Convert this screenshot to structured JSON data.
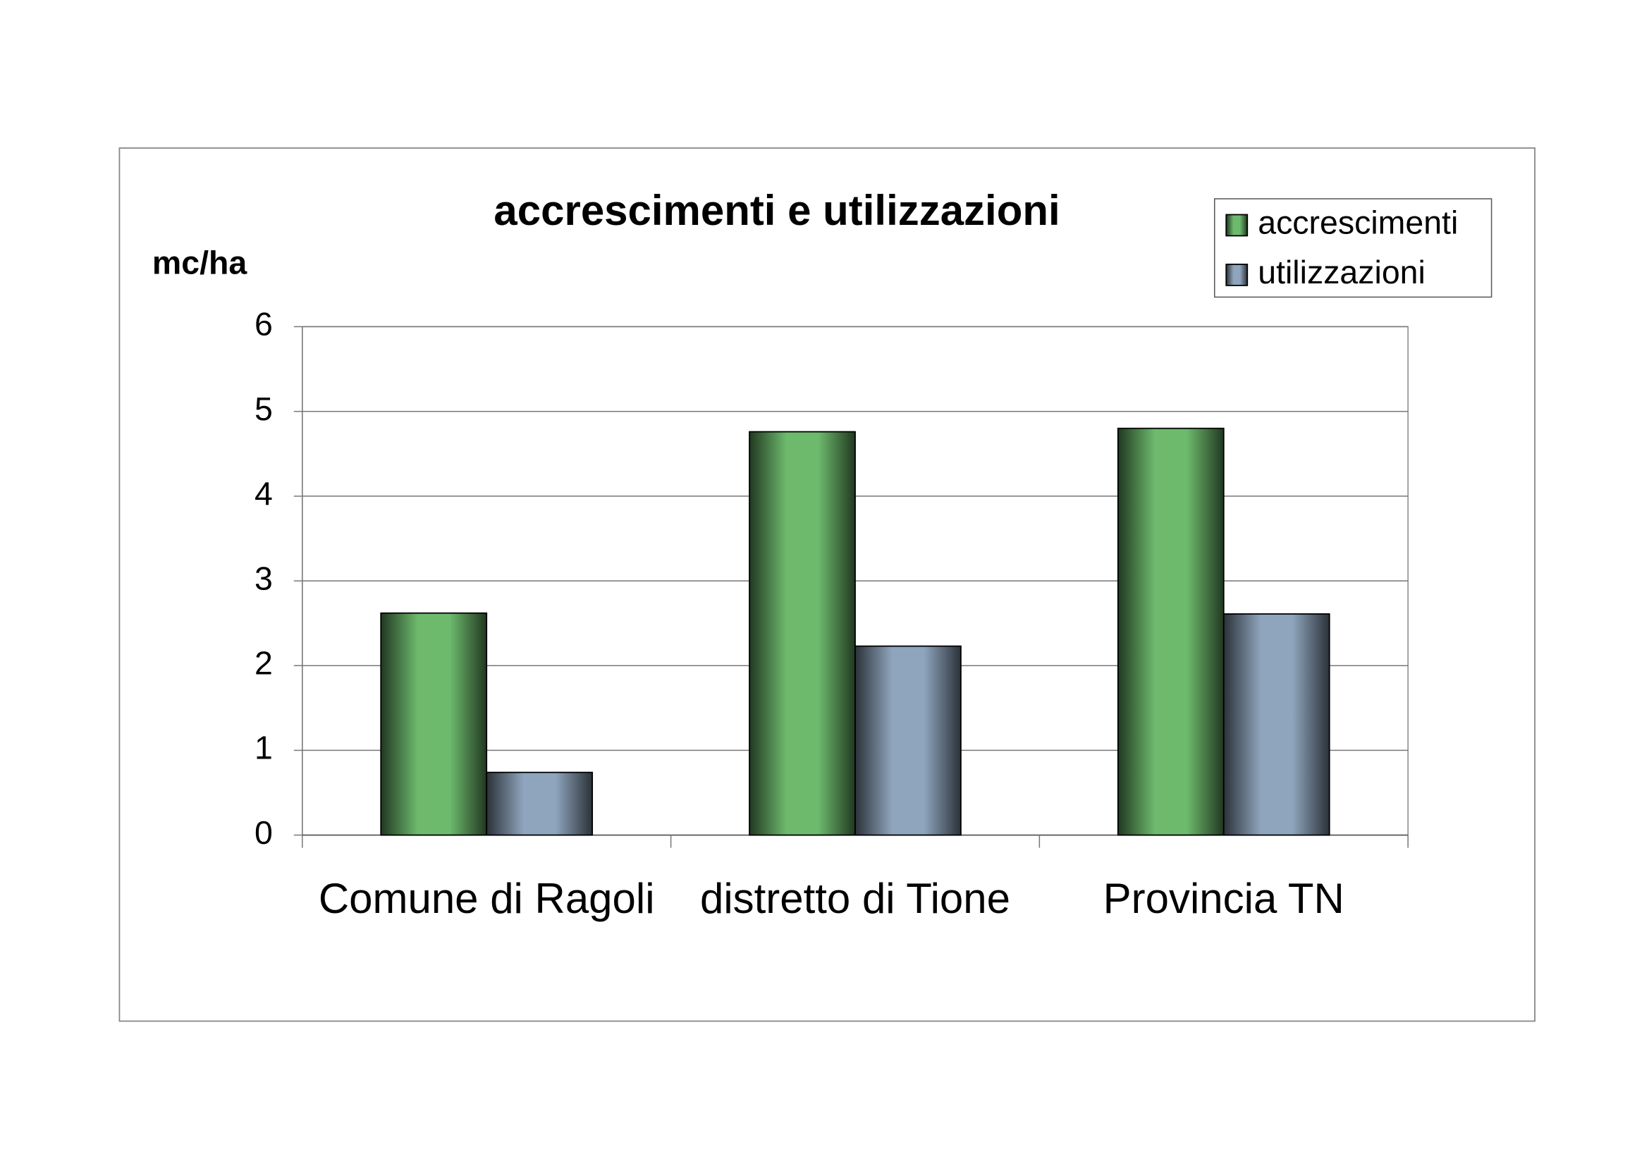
{
  "chart_data": {
    "type": "bar",
    "title": "accrescimenti e utilizzazioni",
    "y_label": "mc/ha",
    "categories": [
      "Comune di Ragoli",
      "distretto di Tione",
      "Provincia TN"
    ],
    "series": [
      {
        "name": "accrescimenti",
        "color": "#6dba6d",
        "values": [
          2.62,
          4.76,
          4.8
        ]
      },
      {
        "name": "utilizzazioni",
        "color": "#8fa5bd",
        "values": [
          0.74,
          2.23,
          2.61
        ]
      }
    ],
    "ylim": [
      0,
      6
    ],
    "yticks": [
      0,
      1,
      2,
      3,
      4,
      5,
      6
    ],
    "grid": true,
    "legend": "top-right"
  }
}
